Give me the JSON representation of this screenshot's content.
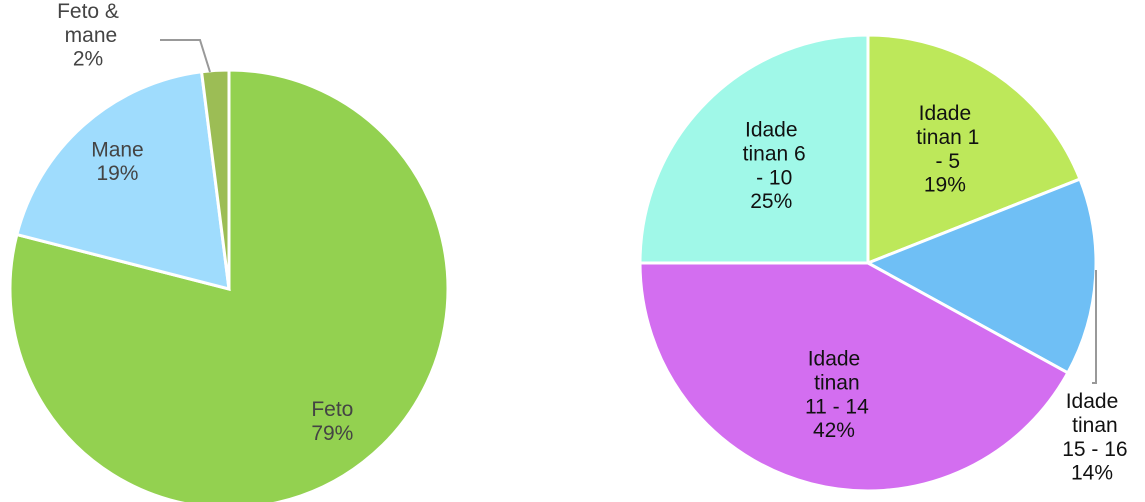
{
  "chart_data": [
    {
      "type": "pie",
      "categories": [
        "Feto",
        "Mane",
        "Feto & mane"
      ],
      "values": [
        79,
        19,
        2
      ],
      "value_labels": [
        "79%",
        "19%",
        "2%"
      ],
      "colors": [
        "#93d150",
        "#9fdcfd",
        "#9cbd55"
      ]
    },
    {
      "type": "pie",
      "categories": [
        "Idade tinan 1 - 5",
        "Idade tinan 15 - 16",
        "Idade tinan 11 - 14",
        "Idade tinan 6 - 10"
      ],
      "values": [
        19,
        14,
        42,
        25
      ],
      "value_labels": [
        "19%",
        "14%",
        "42%",
        "25%"
      ],
      "colors": [
        "#bde85a",
        "#6fbff5",
        "#d36ef0",
        "#a0f8e8"
      ]
    }
  ]
}
